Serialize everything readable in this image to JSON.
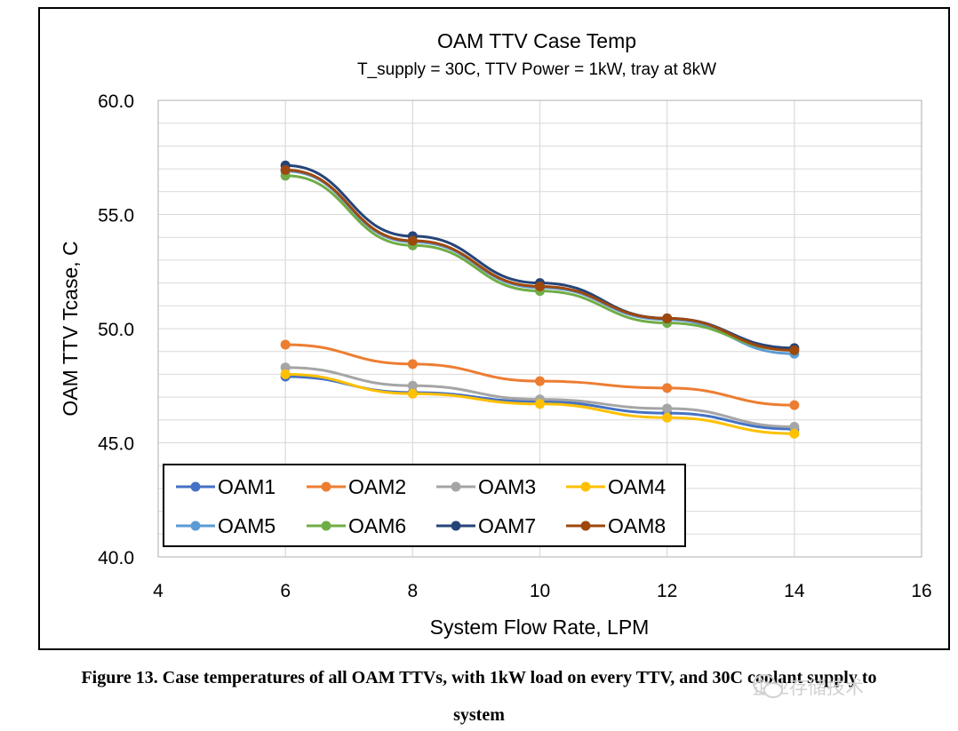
{
  "chart_data": {
    "type": "line",
    "title": "OAM TTV Case Temp",
    "subtitle": "T_supply = 30C, TTV Power = 1kW, tray at 8kW",
    "xlabel": "System Flow Rate, LPM",
    "ylabel": "OAM TTV Tcase, C",
    "xlim": [
      4,
      16
    ],
    "ylim": [
      40,
      60
    ],
    "xticks": [
      4,
      6,
      8,
      10,
      12,
      14,
      16
    ],
    "xtick_labels": [
      "4",
      "6",
      "8",
      "10",
      "12",
      "14",
      "16"
    ],
    "yticks": [
      40,
      45,
      50,
      55,
      60
    ],
    "ytick_labels": [
      "40.0",
      "45.0",
      "50.0",
      "55.0",
      "60.0"
    ],
    "grid": true,
    "legend_position": "bottom-left",
    "x": [
      6,
      8,
      10,
      12,
      14
    ],
    "series": [
      {
        "name": "OAM1",
        "color": "#4472C4",
        "values": [
          47.9,
          47.2,
          46.8,
          46.3,
          45.6
        ]
      },
      {
        "name": "OAM2",
        "color": "#ED7D31",
        "values": [
          49.3,
          48.45,
          47.7,
          47.4,
          46.65
        ]
      },
      {
        "name": "OAM3",
        "color": "#A5A5A5",
        "values": [
          48.3,
          47.5,
          46.9,
          46.5,
          45.7
        ]
      },
      {
        "name": "OAM4",
        "color": "#FFC000",
        "values": [
          48.0,
          47.15,
          46.7,
          46.1,
          45.4
        ]
      },
      {
        "name": "OAM5",
        "color": "#5B9BD5",
        "values": [
          56.9,
          53.8,
          51.8,
          50.4,
          48.9
        ]
      },
      {
        "name": "OAM6",
        "color": "#70AD47",
        "values": [
          56.7,
          53.65,
          51.65,
          50.25,
          49.05
        ]
      },
      {
        "name": "OAM7",
        "color": "#264478",
        "values": [
          57.15,
          54.05,
          52.0,
          50.45,
          49.15
        ]
      },
      {
        "name": "OAM8",
        "color": "#9E480E",
        "values": [
          56.95,
          53.85,
          51.85,
          50.45,
          49.05
        ]
      }
    ]
  },
  "caption": {
    "line1": "Figure 13. Case temperatures of all OAM TTVs, with 1kW load on every TTV, and 30C coolant supply to",
    "line2": "system"
  },
  "watermark": {
    "text": "企业存储技术",
    "icon": "wechat-icon"
  }
}
